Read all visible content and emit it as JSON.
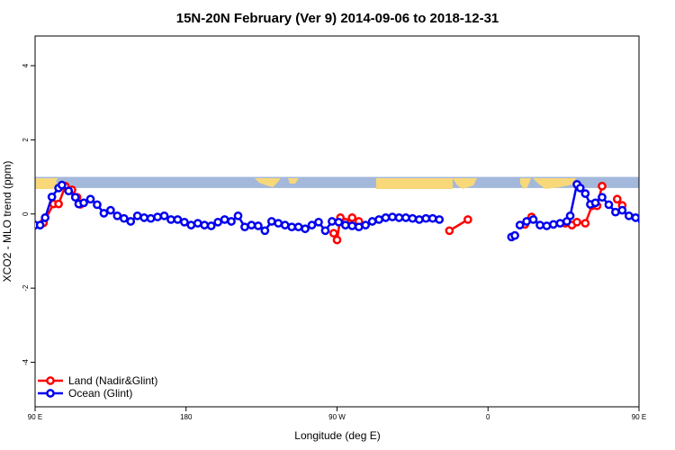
{
  "chart_data": {
    "type": "line",
    "title": "15N-20N February (Ver 9)   2014-09-06 to 2018-12-31",
    "xlabel": "Longitude (deg E)",
    "ylabel": "XCO2 - MLO trend (ppm)",
    "xlim": [
      90,
      450
    ],
    "ylim": [
      -5.2,
      4.8
    ],
    "x_ticks": [
      {
        "value": 90,
        "label": "90 E"
      },
      {
        "value": 180,
        "label": "180"
      },
      {
        "value": 270,
        "label": "90 W"
      },
      {
        "value": 360,
        "label": "0"
      },
      {
        "value": 450,
        "label": "90 E"
      },
      {
        "value": 540,
        "label": "180"
      }
    ],
    "y_ticks": [
      {
        "value": -4,
        "label": "-4"
      },
      {
        "value": -2,
        "label": "-2"
      },
      {
        "value": 0,
        "label": "0"
      },
      {
        "value": 2,
        "label": "2"
      },
      {
        "value": 4,
        "label": "4"
      }
    ],
    "map_band": {
      "ocean_color": "#a3b8da",
      "land_color": "#f8d878",
      "ymin": 0.7,
      "ymax": 1.0
    },
    "legend": {
      "position": "bottom-left"
    },
    "series": [
      {
        "name": "Land (Nadir&Glint)",
        "color": "#ff0000",
        "segments": [
          [
            [
              95,
              -0.24
            ],
            [
              101,
              0.27
            ],
            [
              104,
              0.27
            ],
            [
              108,
              0.75
            ],
            [
              112,
              0.65
            ],
            [
              115,
              0.45
            ],
            [
              117,
              0.26
            ]
          ],
          [
            [
              268,
              -0.52
            ],
            [
              270,
              -0.7
            ],
            [
              272,
              -0.1
            ],
            [
              275,
              -0.22
            ],
            [
              279,
              -0.1
            ],
            [
              283,
              -0.2
            ]
          ],
          [
            [
              337,
              -0.45
            ],
            [
              348,
              -0.15
            ]
          ],
          [
            [
              382,
              -0.28
            ],
            [
              386,
              -0.08
            ]
          ],
          [
            [
              406,
              -0.25
            ],
            [
              410,
              -0.3
            ],
            [
              413,
              -0.22
            ],
            [
              418,
              -0.25
            ],
            [
              422,
              0.22
            ],
            [
              425,
              0.22
            ],
            [
              428,
              0.75
            ]
          ],
          [
            [
              437,
              0.4
            ],
            [
              440,
              0.23
            ]
          ]
        ]
      },
      {
        "name": "Ocean (Glint)",
        "color": "#0000ee",
        "segments": [
          [
            [
              90,
              -0.3
            ],
            [
              93,
              -0.3
            ],
            [
              96,
              -0.1
            ],
            [
              100,
              0.46
            ],
            [
              104,
              0.7
            ],
            [
              106,
              0.78
            ],
            [
              110,
              0.62
            ],
            [
              114,
              0.45
            ],
            [
              116,
              0.27
            ],
            [
              119,
              0.3
            ],
            [
              123,
              0.4
            ],
            [
              127,
              0.25
            ],
            [
              131,
              0.02
            ],
            [
              135,
              0.1
            ],
            [
              139,
              -0.05
            ],
            [
              143,
              -0.12
            ],
            [
              147,
              -0.2
            ],
            [
              151,
              -0.05
            ],
            [
              155,
              -0.1
            ],
            [
              159,
              -0.12
            ],
            [
              163,
              -0.08
            ],
            [
              167,
              -0.05
            ],
            [
              171,
              -0.15
            ],
            [
              175,
              -0.15
            ],
            [
              179,
              -0.22
            ],
            [
              183,
              -0.3
            ],
            [
              187,
              -0.25
            ],
            [
              191,
              -0.3
            ],
            [
              195,
              -0.32
            ],
            [
              199,
              -0.22
            ],
            [
              203,
              -0.15
            ],
            [
              207,
              -0.2
            ],
            [
              211,
              -0.05
            ],
            [
              215,
              -0.35
            ],
            [
              219,
              -0.3
            ],
            [
              223,
              -0.32
            ],
            [
              227,
              -0.45
            ],
            [
              231,
              -0.2
            ],
            [
              235,
              -0.25
            ],
            [
              239,
              -0.3
            ],
            [
              243,
              -0.35
            ],
            [
              247,
              -0.35
            ],
            [
              251,
              -0.4
            ],
            [
              255,
              -0.3
            ],
            [
              259,
              -0.22
            ],
            [
              263,
              -0.45
            ],
            [
              267,
              -0.2
            ],
            [
              271,
              -0.22
            ],
            [
              275,
              -0.3
            ],
            [
              279,
              -0.32
            ],
            [
              283,
              -0.35
            ],
            [
              287,
              -0.3
            ],
            [
              291,
              -0.2
            ],
            [
              295,
              -0.15
            ],
            [
              299,
              -0.1
            ],
            [
              303,
              -0.08
            ],
            [
              307,
              -0.1
            ],
            [
              311,
              -0.1
            ],
            [
              315,
              -0.12
            ],
            [
              319,
              -0.15
            ],
            [
              323,
              -0.12
            ],
            [
              327,
              -0.12
            ],
            [
              331,
              -0.15
            ]
          ],
          [
            [
              374,
              -0.62
            ],
            [
              376,
              -0.58
            ]
          ],
          [
            [
              379,
              -0.3
            ],
            [
              383,
              -0.2
            ],
            [
              387,
              -0.15
            ],
            [
              391,
              -0.3
            ],
            [
              395,
              -0.32
            ],
            [
              399,
              -0.28
            ],
            [
              403,
              -0.25
            ],
            [
              407,
              -0.2
            ],
            [
              409,
              -0.05
            ],
            [
              413,
              0.8
            ],
            [
              415,
              0.7
            ],
            [
              418,
              0.55
            ],
            [
              421,
              0.26
            ],
            [
              424,
              0.3
            ],
            [
              428,
              0.45
            ],
            [
              432,
              0.25
            ],
            [
              436,
              0.05
            ],
            [
              440,
              0.1
            ],
            [
              444,
              -0.05
            ],
            [
              448,
              -0.1
            ],
            [
              452,
              -0.2
            ],
            [
              456,
              -0.1
            ],
            [
              460,
              -0.15
            ],
            [
              464,
              -0.15
            ],
            [
              466,
              -0.15
            ]
          ]
        ]
      }
    ]
  }
}
